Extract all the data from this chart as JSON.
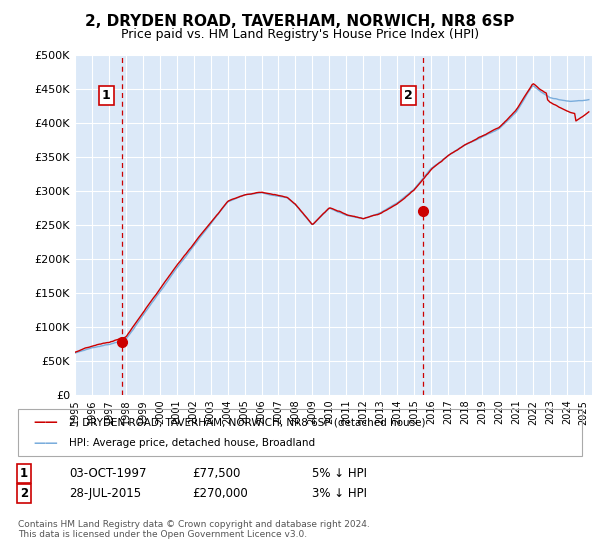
{
  "title": "2, DRYDEN ROAD, TAVERHAM, NORWICH, NR8 6SP",
  "subtitle": "Price paid vs. HM Land Registry's House Price Index (HPI)",
  "ylim": [
    0,
    500000
  ],
  "yticks": [
    0,
    50000,
    100000,
    150000,
    200000,
    250000,
    300000,
    350000,
    400000,
    450000,
    500000
  ],
  "ytick_labels": [
    "£0",
    "£50K",
    "£100K",
    "£150K",
    "£200K",
    "£250K",
    "£300K",
    "£350K",
    "£400K",
    "£450K",
    "£500K"
  ],
  "background_color": "#dce9f8",
  "grid_color": "#ffffff",
  "red_line_color": "#cc0000",
  "blue_line_color": "#7aaddc",
  "sale1_date": 1997.75,
  "sale1_price": 77500,
  "sale1_label": "1",
  "sale2_date": 2015.55,
  "sale2_price": 270000,
  "sale2_label": "2",
  "legend_label1": "2, DRYDEN ROAD, TAVERHAM, NORWICH, NR8 6SP (detached house)",
  "legend_label2": "HPI: Average price, detached house, Broadland",
  "table_row1": [
    "1",
    "03-OCT-1997",
    "£77,500",
    "5% ↓ HPI"
  ],
  "table_row2": [
    "2",
    "28-JUL-2015",
    "£270,000",
    "3% ↓ HPI"
  ],
  "footer": "Contains HM Land Registry data © Crown copyright and database right 2024.\nThis data is licensed under the Open Government Licence v3.0.",
  "title_fontsize": 11,
  "subtitle_fontsize": 9,
  "tick_fontsize": 8
}
